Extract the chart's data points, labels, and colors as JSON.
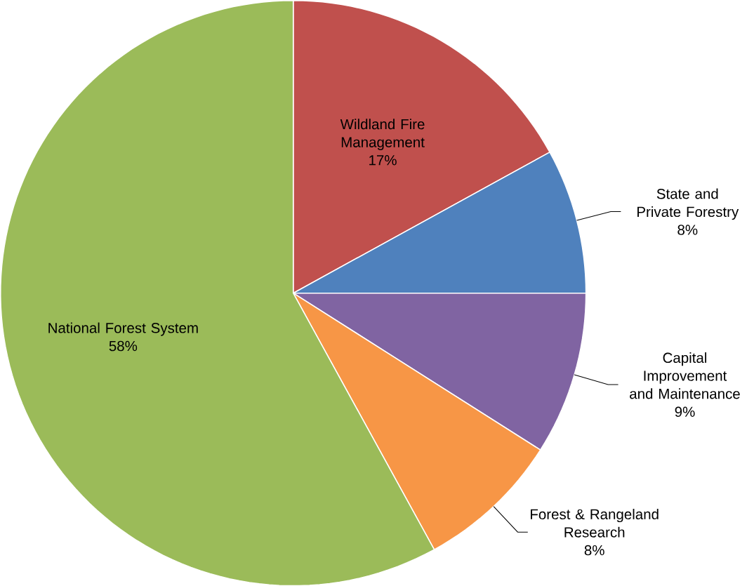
{
  "chart_data": {
    "type": "pie",
    "categories": [
      "Wildland Fire Management",
      "State and Private Forestry",
      "Capital Improvement and Maintenance",
      "Forest & Rangeland Research",
      "National Forest System"
    ],
    "values": [
      17,
      8,
      9,
      8,
      58
    ],
    "value_labels": [
      "17%",
      "8%",
      "9%",
      "8%",
      "58%"
    ],
    "colors": [
      "#c0504d",
      "#4f81bd",
      "#8064a2",
      "#f79646",
      "#9bbb59"
    ]
  }
}
